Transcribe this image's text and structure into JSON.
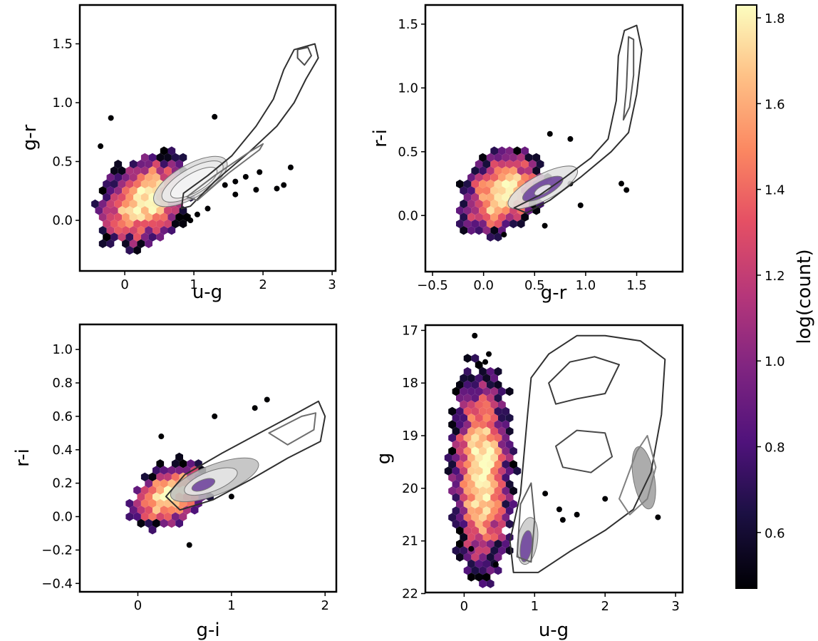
{
  "chart_data": [
    {
      "type": "hexbin",
      "id": "ug-gr",
      "xlabel": "u-g",
      "ylabel": "g-r",
      "xlim": [
        -0.65,
        3.05
      ],
      "ylim": [
        -0.43,
        1.83
      ],
      "xticks": [
        0,
        1,
        2,
        3
      ],
      "xtick_labels": [
        "0",
        "1",
        "2",
        "3"
      ],
      "yticks": [
        0.0,
        0.5,
        1.0,
        1.5
      ],
      "ytick_labels": [
        "0.0",
        "0.5",
        "1.0",
        "1.5"
      ],
      "invert_y": false,
      "hexbin": {
        "center": [
          0.28,
          0.17
        ],
        "spread": [
          0.33,
          0.2
        ],
        "tilt": 0.25
      },
      "scatter_points": [
        [
          -0.2,
          0.87
        ],
        [
          1.3,
          0.88
        ],
        [
          -0.35,
          0.63
        ],
        [
          1.75,
          0.37
        ],
        [
          1.95,
          0.41
        ],
        [
          2.2,
          0.27
        ],
        [
          2.4,
          0.45
        ],
        [
          1.6,
          0.33
        ],
        [
          2.3,
          0.3
        ],
        [
          1.9,
          0.26
        ],
        [
          1.45,
          0.3
        ],
        [
          1.6,
          0.22
        ],
        [
          1.2,
          0.1
        ],
        [
          1.05,
          0.05
        ],
        [
          0.95,
          0.0
        ]
      ],
      "contours": [
        {
          "center": [
            0.95,
            0.33
          ],
          "axis": [
            0.6,
            0.14
          ],
          "angle": 30,
          "color": "#d9d9d9"
        },
        {
          "center": [
            0.98,
            0.33
          ],
          "axis": [
            0.5,
            0.11
          ],
          "angle": 30,
          "color": "#ececec"
        },
        {
          "center": [
            1.0,
            0.32
          ],
          "axis": [
            0.38,
            0.08
          ],
          "angle": 30,
          "color": "#f5f5f5"
        }
      ],
      "contour_paths": [
        {
          "color": "#303030",
          "points": [
            [
              0.85,
              0.23
            ],
            [
              1.2,
              0.38
            ],
            [
              1.55,
              0.55
            ],
            [
              1.9,
              0.8
            ],
            [
              2.15,
              1.03
            ],
            [
              2.3,
              1.28
            ],
            [
              2.45,
              1.45
            ],
            [
              2.75,
              1.5
            ],
            [
              2.8,
              1.38
            ],
            [
              2.62,
              1.2
            ],
            [
              2.45,
              1.0
            ],
            [
              2.2,
              0.8
            ],
            [
              1.8,
              0.58
            ],
            [
              1.3,
              0.33
            ],
            [
              0.95,
              0.12
            ],
            [
              0.82,
              0.1
            ],
            [
              0.85,
              0.23
            ]
          ]
        },
        {
          "color": "#4a4a4a",
          "points": [
            [
              2.5,
              1.45
            ],
            [
              2.65,
              1.47
            ],
            [
              2.7,
              1.4
            ],
            [
              2.6,
              1.32
            ],
            [
              2.5,
              1.38
            ],
            [
              2.5,
              1.45
            ]
          ]
        },
        {
          "color": "#707070",
          "points": [
            [
              0.9,
              0.2
            ],
            [
              1.3,
              0.38
            ],
            [
              1.8,
              0.58
            ],
            [
              2.0,
              0.65
            ],
            [
              1.95,
              0.6
            ],
            [
              1.5,
              0.4
            ],
            [
              1.05,
              0.17
            ],
            [
              0.9,
              0.2
            ]
          ]
        }
      ]
    },
    {
      "type": "hexbin",
      "id": "gr-ri",
      "xlabel": "g-r",
      "ylabel": "r-i",
      "xlim": [
        -0.57,
        1.95
      ],
      "ylim": [
        -0.44,
        1.65
      ],
      "xticks": [
        -0.5,
        0.0,
        0.5,
        1.0,
        1.5
      ],
      "xtick_labels": [
        "−0.5",
        "0.0",
        "0.5",
        "1.0",
        "1.5"
      ],
      "yticks": [
        0.0,
        0.5,
        1.0,
        1.5
      ],
      "ytick_labels": [
        "0.0",
        "0.5",
        "1.0",
        "1.5"
      ],
      "invert_y": false,
      "hexbin": {
        "center": [
          0.18,
          0.18
        ],
        "spread": [
          0.2,
          0.17
        ],
        "tilt": 0.3
      },
      "scatter_points": [
        [
          0.65,
          0.64
        ],
        [
          0.85,
          0.6
        ],
        [
          1.35,
          0.25
        ],
        [
          1.4,
          0.2
        ],
        [
          0.95,
          0.08
        ],
        [
          0.2,
          -0.15
        ],
        [
          0.6,
          -0.08
        ],
        [
          0.85,
          0.25
        ]
      ],
      "contours": [
        {
          "center": [
            0.58,
            0.22
          ],
          "axis": [
            0.38,
            0.1
          ],
          "angle": 28,
          "color": "#e0e0e0"
        },
        {
          "center": [
            0.58,
            0.21
          ],
          "axis": [
            0.22,
            0.06
          ],
          "angle": 28,
          "color": "#6a3d9a"
        },
        {
          "center": [
            0.58,
            0.2
          ],
          "axis": [
            0.09,
            0.03
          ],
          "angle": 28,
          "color": "#f4f4f4"
        }
      ],
      "contour_paths": [
        {
          "color": "#303030",
          "points": [
            [
              0.3,
              0.06
            ],
            [
              0.55,
              0.16
            ],
            [
              0.8,
              0.3
            ],
            [
              1.05,
              0.45
            ],
            [
              1.22,
              0.6
            ],
            [
              1.3,
              0.9
            ],
            [
              1.32,
              1.25
            ],
            [
              1.38,
              1.45
            ],
            [
              1.5,
              1.49
            ],
            [
              1.55,
              1.3
            ],
            [
              1.5,
              0.95
            ],
            [
              1.42,
              0.65
            ],
            [
              1.25,
              0.5
            ],
            [
              0.95,
              0.3
            ],
            [
              0.65,
              0.12
            ],
            [
              0.42,
              0.02
            ],
            [
              0.3,
              0.06
            ]
          ]
        },
        {
          "color": "#555555",
          "points": [
            [
              1.42,
              1.4
            ],
            [
              1.4,
              1.0
            ],
            [
              1.37,
              0.75
            ],
            [
              1.43,
              0.85
            ],
            [
              1.47,
              1.1
            ],
            [
              1.47,
              1.38
            ],
            [
              1.42,
              1.4
            ]
          ]
        }
      ]
    },
    {
      "type": "hexbin",
      "id": "gi-ri",
      "xlabel": "g-i",
      "ylabel": "r-i",
      "xlim": [
        -0.62,
        2.12
      ],
      "ylim": [
        -0.45,
        1.15
      ],
      "xticks": [
        0,
        1,
        2
      ],
      "xtick_labels": [
        "0",
        "1",
        "2"
      ],
      "yticks": [
        -0.4,
        -0.2,
        0.0,
        0.2,
        0.4,
        0.6,
        0.8,
        1.0
      ],
      "ytick_labels": [
        "−0.4",
        "−0.2",
        "0.0",
        "0.2",
        "0.4",
        "0.6",
        "0.8",
        "1.0"
      ],
      "invert_y": false,
      "hexbin": {
        "center": [
          0.35,
          0.13
        ],
        "spread": [
          0.2,
          0.1
        ],
        "tilt": 0.36
      },
      "scatter_points": [
        [
          0.82,
          0.6
        ],
        [
          1.25,
          0.65
        ],
        [
          1.38,
          0.7
        ],
        [
          0.55,
          -0.17
        ],
        [
          1.0,
          0.12
        ],
        [
          0.25,
          0.48
        ]
      ],
      "contours": [
        {
          "center": [
            0.82,
            0.22
          ],
          "axis": [
            0.5,
            0.09
          ],
          "angle": 21,
          "color": "#bdbdbd"
        },
        {
          "center": [
            0.78,
            0.21
          ],
          "axis": [
            0.3,
            0.06
          ],
          "angle": 21,
          "color": "#e6e6e6"
        },
        {
          "center": [
            0.7,
            0.19
          ],
          "axis": [
            0.13,
            0.03
          ],
          "angle": 21,
          "color": "#6a3d9a"
        }
      ],
      "contour_paths": [
        {
          "color": "#303030",
          "points": [
            [
              0.3,
              0.12
            ],
            [
              0.5,
              0.25
            ],
            [
              0.9,
              0.38
            ],
            [
              1.3,
              0.5
            ],
            [
              1.7,
              0.62
            ],
            [
              1.93,
              0.69
            ],
            [
              2.0,
              0.6
            ],
            [
              1.95,
              0.45
            ],
            [
              1.6,
              0.35
            ],
            [
              1.2,
              0.22
            ],
            [
              0.8,
              0.1
            ],
            [
              0.45,
              0.04
            ],
            [
              0.3,
              0.12
            ]
          ]
        },
        {
          "color": "#6e6e6e",
          "points": [
            [
              1.4,
              0.5
            ],
            [
              1.75,
              0.6
            ],
            [
              1.9,
              0.62
            ],
            [
              1.88,
              0.52
            ],
            [
              1.6,
              0.43
            ],
            [
              1.4,
              0.5
            ]
          ]
        }
      ]
    },
    {
      "type": "hexbin",
      "id": "ug-g",
      "xlabel": "u-g",
      "ylabel": "g",
      "xlim": [
        -0.55,
        3.1
      ],
      "ylim": [
        21.98,
        16.9
      ],
      "xticks": [
        0,
        1,
        2,
        3
      ],
      "xtick_labels": [
        "0",
        "1",
        "2",
        "3"
      ],
      "yticks": [
        17,
        18,
        19,
        20,
        21,
        22
      ],
      "ytick_labels": [
        "17",
        "18",
        "19",
        "20",
        "21",
        "22"
      ],
      "invert_y": true,
      "hexbin": {
        "center": [
          0.25,
          19.7
        ],
        "spread": [
          0.22,
          1.0
        ],
        "tilt": 0.0
      },
      "scatter_points": [
        [
          0.15,
          17.1
        ],
        [
          0.35,
          17.45
        ],
        [
          0.3,
          17.6
        ],
        [
          2.75,
          20.55
        ],
        [
          2.0,
          20.2
        ],
        [
          1.6,
          20.5
        ],
        [
          1.35,
          20.4
        ],
        [
          0.1,
          21.15
        ],
        [
          0.45,
          21.45
        ],
        [
          1.15,
          20.1
        ],
        [
          1.4,
          20.6
        ]
      ],
      "contours": [
        {
          "center": [
            0.9,
            21.0
          ],
          "axis": [
            0.14,
            0.45
          ],
          "angle": -8,
          "color": "#c8c8c8"
        },
        {
          "center": [
            0.88,
            21.1
          ],
          "axis": [
            0.08,
            0.3
          ],
          "angle": -8,
          "color": "#6a3d9a"
        },
        {
          "center": [
            2.55,
            19.8
          ],
          "axis": [
            0.15,
            0.6
          ],
          "angle": 10,
          "color": "#9e9e9e"
        }
      ],
      "contour_paths": [
        {
          "color": "#303030",
          "points": [
            [
              0.9,
              18.6
            ],
            [
              0.95,
              17.9
            ],
            [
              1.2,
              17.45
            ],
            [
              1.6,
              17.1
            ],
            [
              2.0,
              17.1
            ],
            [
              2.5,
              17.2
            ],
            [
              2.85,
              17.55
            ],
            [
              2.8,
              18.6
            ],
            [
              2.65,
              19.7
            ],
            [
              2.4,
              20.4
            ],
            [
              2.0,
              20.8
            ],
            [
              1.5,
              21.2
            ],
            [
              1.05,
              21.6
            ],
            [
              0.7,
              21.6
            ],
            [
              0.65,
              21.0
            ],
            [
              0.8,
              20.1
            ],
            [
              0.9,
              18.6
            ]
          ]
        },
        {
          "color": "#3a3a3a",
          "points": [
            [
              1.2,
              18.0
            ],
            [
              1.5,
              17.6
            ],
            [
              1.85,
              17.5
            ],
            [
              2.2,
              17.65
            ],
            [
              2.0,
              18.2
            ],
            [
              1.6,
              18.3
            ],
            [
              1.3,
              18.4
            ],
            [
              1.2,
              18.0
            ]
          ]
        },
        {
          "color": "#4a4a4a",
          "points": [
            [
              1.3,
              19.2
            ],
            [
              1.6,
              18.9
            ],
            [
              2.0,
              18.95
            ],
            [
              2.1,
              19.4
            ],
            [
              1.8,
              19.7
            ],
            [
              1.4,
              19.6
            ],
            [
              1.3,
              19.2
            ]
          ]
        },
        {
          "color": "#808080",
          "points": [
            [
              2.2,
              20.2
            ],
            [
              2.45,
              19.3
            ],
            [
              2.6,
              19.0
            ],
            [
              2.72,
              19.6
            ],
            [
              2.6,
              20.2
            ],
            [
              2.35,
              20.5
            ],
            [
              2.2,
              20.2
            ]
          ]
        },
        {
          "color": "#606060",
          "points": [
            [
              0.75,
              21.3
            ],
            [
              0.8,
              20.3
            ],
            [
              0.95,
              19.9
            ],
            [
              1.0,
              20.6
            ],
            [
              0.95,
              21.4
            ],
            [
              0.75,
              21.3
            ]
          ]
        }
      ]
    }
  ],
  "colorbar": {
    "label": "log(count)",
    "colormap": "magma",
    "range": [
      0.47,
      1.83
    ],
    "ticks": [
      0.6,
      0.8,
      1.0,
      1.2,
      1.4,
      1.6,
      1.8
    ],
    "tick_labels": [
      "0.6",
      "0.8",
      "1.0",
      "1.2",
      "1.4",
      "1.6",
      "1.8"
    ]
  }
}
